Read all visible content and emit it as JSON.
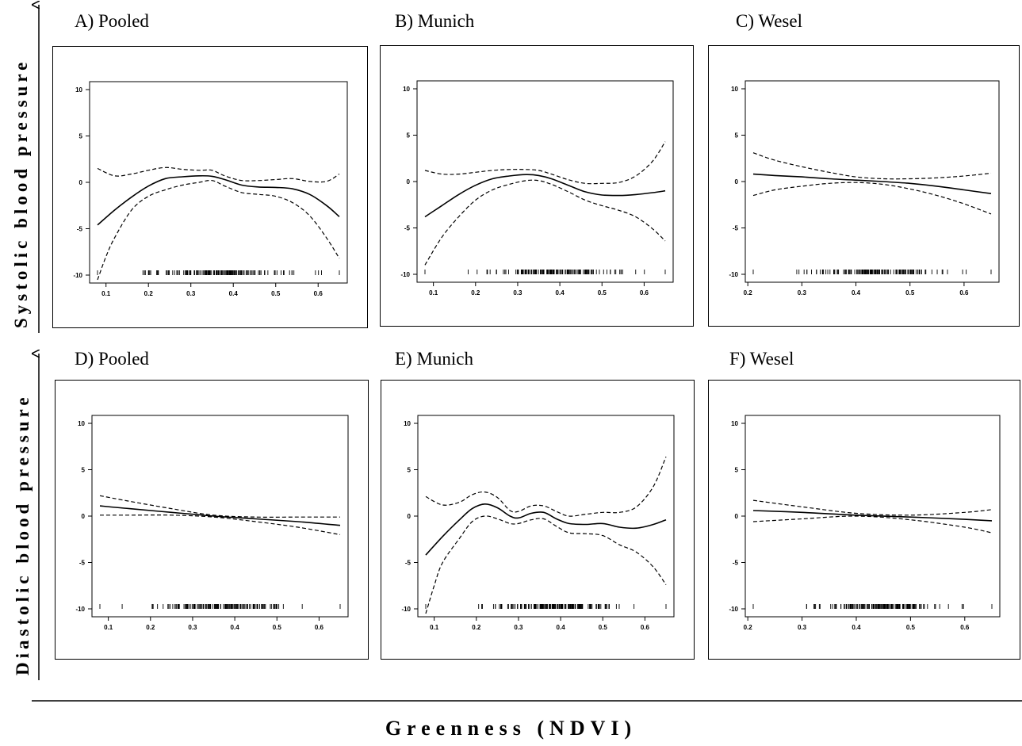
{
  "figure": {
    "row_labels": [
      "Systolic blood pressure",
      "Diastolic blood pressure"
    ],
    "x_title": "Greenness (NDVI)"
  },
  "chart_data": [
    {
      "type": "line",
      "panel": "A) Pooled",
      "xlim": [
        0.08,
        0.65
      ],
      "ylim": [
        -10,
        10
      ],
      "xticks": [
        0.1,
        0.2,
        0.3,
        0.4,
        0.5,
        0.6
      ],
      "yticks": [
        10,
        5,
        0,
        -5,
        -10
      ],
      "rug": "dense",
      "rug_range": [
        0.08,
        0.65
      ],
      "series": [
        {
          "style": "solid",
          "x": [
            0.08,
            0.12,
            0.16,
            0.2,
            0.24,
            0.28,
            0.32,
            0.35,
            0.38,
            0.42,
            0.46,
            0.5,
            0.54,
            0.58,
            0.62,
            0.65
          ],
          "y": [
            -4.6,
            -3,
            -1.6,
            -0.4,
            0.4,
            0.6,
            0.7,
            0.65,
            0.3,
            -0.3,
            -0.5,
            -0.55,
            -0.7,
            -1.3,
            -2.5,
            -3.7
          ]
        },
        {
          "style": "dashed",
          "x": [
            0.08,
            0.12,
            0.16,
            0.2,
            0.24,
            0.28,
            0.32,
            0.35,
            0.38,
            0.42,
            0.46,
            0.5,
            0.54,
            0.58,
            0.62,
            0.65
          ],
          "y": [
            1.5,
            0.7,
            0.9,
            1.3,
            1.6,
            1.4,
            1.3,
            1.3,
            0.7,
            0.2,
            0.2,
            0.3,
            0.4,
            0.1,
            0.1,
            0.9
          ]
        },
        {
          "style": "dashed",
          "x": [
            0.08,
            0.1,
            0.12,
            0.16,
            0.2,
            0.24,
            0.28,
            0.32,
            0.35,
            0.38,
            0.42,
            0.46,
            0.5,
            0.54,
            0.58,
            0.62,
            0.65
          ],
          "y": [
            -10.5,
            -8,
            -6,
            -3,
            -1.5,
            -0.8,
            -0.3,
            0,
            0.2,
            -0.4,
            -1.1,
            -1.3,
            -1.5,
            -2.2,
            -3.6,
            -6,
            -8.2
          ]
        }
      ]
    },
    {
      "type": "line",
      "panel": "B) Munich",
      "xlim": [
        0.08,
        0.65
      ],
      "ylim": [
        -10,
        10
      ],
      "xticks": [
        0.1,
        0.2,
        0.3,
        0.4,
        0.5,
        0.6
      ],
      "yticks": [
        10,
        5,
        0,
        -5,
        -10
      ],
      "rug": "dense",
      "rug_range": [
        0.13,
        0.65
      ],
      "series": [
        {
          "style": "solid",
          "x": [
            0.08,
            0.12,
            0.16,
            0.2,
            0.24,
            0.28,
            0.32,
            0.35,
            0.38,
            0.42,
            0.46,
            0.5,
            0.54,
            0.58,
            0.62,
            0.65
          ],
          "y": [
            -3.8,
            -2.6,
            -1.4,
            -0.4,
            0.3,
            0.6,
            0.75,
            0.65,
            0.3,
            -0.4,
            -1.1,
            -1.45,
            -1.5,
            -1.4,
            -1.2,
            -1.0
          ]
        },
        {
          "style": "dashed",
          "x": [
            0.08,
            0.12,
            0.16,
            0.2,
            0.24,
            0.28,
            0.32,
            0.35,
            0.38,
            0.42,
            0.46,
            0.5,
            0.54,
            0.58,
            0.62,
            0.65
          ],
          "y": [
            1.2,
            0.8,
            0.8,
            1.0,
            1.2,
            1.3,
            1.3,
            1.2,
            0.8,
            0.2,
            -0.2,
            -0.2,
            -0.1,
            0.6,
            2.2,
            4.3
          ]
        },
        {
          "style": "dashed",
          "x": [
            0.08,
            0.12,
            0.16,
            0.2,
            0.24,
            0.28,
            0.32,
            0.35,
            0.38,
            0.42,
            0.46,
            0.5,
            0.54,
            0.58,
            0.62,
            0.65
          ],
          "y": [
            -9,
            -6,
            -3.8,
            -2,
            -0.9,
            -0.3,
            0.1,
            0.1,
            -0.3,
            -1.1,
            -2,
            -2.6,
            -3.1,
            -3.8,
            -5.1,
            -6.4
          ]
        }
      ]
    },
    {
      "type": "line",
      "panel": "C) Wesel",
      "xlim": [
        0.21,
        0.65
      ],
      "ylim": [
        -10,
        10
      ],
      "xticks": [
        0.2,
        0.3,
        0.4,
        0.5,
        0.6
      ],
      "yticks": [
        10,
        5,
        0,
        -5,
        -10
      ],
      "rug": "dense",
      "rug_range": [
        0.22,
        0.65
      ],
      "series": [
        {
          "style": "solid",
          "x": [
            0.21,
            0.25,
            0.3,
            0.35,
            0.4,
            0.45,
            0.5,
            0.55,
            0.6,
            0.65
          ],
          "y": [
            0.8,
            0.65,
            0.5,
            0.3,
            0.15,
            0,
            -0.2,
            -0.5,
            -0.9,
            -1.3
          ]
        },
        {
          "style": "dashed",
          "x": [
            0.21,
            0.25,
            0.3,
            0.35,
            0.4,
            0.45,
            0.5,
            0.55,
            0.6,
            0.65
          ],
          "y": [
            3.1,
            2.3,
            1.6,
            1.0,
            0.5,
            0.3,
            0.3,
            0.4,
            0.6,
            0.9
          ]
        },
        {
          "style": "dashed",
          "x": [
            0.21,
            0.25,
            0.3,
            0.35,
            0.4,
            0.45,
            0.5,
            0.55,
            0.6,
            0.65
          ],
          "y": [
            -1.5,
            -0.9,
            -0.5,
            -0.2,
            -0.1,
            -0.3,
            -0.8,
            -1.5,
            -2.4,
            -3.5
          ]
        }
      ]
    },
    {
      "type": "line",
      "panel": "D) Pooled",
      "xlim": [
        0.08,
        0.65
      ],
      "ylim": [
        -10,
        10
      ],
      "xticks": [
        0.1,
        0.2,
        0.3,
        0.4,
        0.5,
        0.6
      ],
      "yticks": [
        10,
        5,
        0,
        -5,
        -10
      ],
      "rug": "dense",
      "rug_range": [
        0.08,
        0.65
      ],
      "series": [
        {
          "style": "solid",
          "x": [
            0.08,
            0.15,
            0.25,
            0.35,
            0.45,
            0.55,
            0.65
          ],
          "y": [
            1.1,
            0.8,
            0.4,
            0,
            -0.3,
            -0.6,
            -1.0
          ]
        },
        {
          "style": "dashed",
          "x": [
            0.08,
            0.15,
            0.25,
            0.35,
            0.45,
            0.55,
            0.65
          ],
          "y": [
            2.2,
            1.6,
            0.8,
            0.1,
            -0.1,
            -0.1,
            -0.1
          ]
        },
        {
          "style": "dashed",
          "x": [
            0.08,
            0.15,
            0.25,
            0.35,
            0.45,
            0.55,
            0.65
          ],
          "y": [
            0.1,
            0.1,
            0.1,
            -0.1,
            -0.6,
            -1.2,
            -2.0
          ]
        }
      ]
    },
    {
      "type": "line",
      "panel": "E) Munich",
      "xlim": [
        0.08,
        0.65
      ],
      "ylim": [
        -10,
        10
      ],
      "xticks": [
        0.1,
        0.2,
        0.3,
        0.4,
        0.5,
        0.6
      ],
      "yticks": [
        10,
        5,
        0,
        -5,
        -10
      ],
      "rug": "dense",
      "rug_range": [
        0.13,
        0.65
      ],
      "series": [
        {
          "style": "solid",
          "x": [
            0.08,
            0.12,
            0.16,
            0.19,
            0.22,
            0.25,
            0.28,
            0.3,
            0.33,
            0.36,
            0.39,
            0.42,
            0.46,
            0.5,
            0.54,
            0.58,
            0.62,
            0.65
          ],
          "y": [
            -4.2,
            -2.2,
            -0.4,
            0.8,
            1.3,
            0.9,
            0,
            -0.2,
            0.3,
            0.4,
            -0.3,
            -0.8,
            -0.9,
            -0.8,
            -1.2,
            -1.3,
            -0.9,
            -0.4
          ]
        },
        {
          "style": "dashed",
          "x": [
            0.08,
            0.12,
            0.16,
            0.19,
            0.22,
            0.25,
            0.28,
            0.3,
            0.33,
            0.36,
            0.39,
            0.42,
            0.46,
            0.5,
            0.54,
            0.58,
            0.62,
            0.65
          ],
          "y": [
            2.1,
            1.2,
            1.5,
            2.3,
            2.6,
            2.0,
            0.6,
            0.5,
            1.1,
            1.1,
            0.5,
            0,
            0.2,
            0.4,
            0.4,
            1.0,
            3.2,
            6.4
          ]
        },
        {
          "style": "dashed",
          "x": [
            0.08,
            0.1,
            0.12,
            0.16,
            0.19,
            0.22,
            0.25,
            0.28,
            0.3,
            0.33,
            0.36,
            0.39,
            0.42,
            0.46,
            0.5,
            0.54,
            0.58,
            0.62,
            0.65
          ],
          "y": [
            -10.5,
            -7.5,
            -5,
            -2.4,
            -0.6,
            0,
            -0.3,
            -0.8,
            -0.8,
            -0.4,
            -0.3,
            -1.1,
            -1.8,
            -1.9,
            -2.1,
            -3.1,
            -3.9,
            -5.5,
            -7.4
          ]
        }
      ]
    },
    {
      "type": "line",
      "panel": "F) Wesel",
      "xlim": [
        0.21,
        0.65
      ],
      "ylim": [
        -10,
        10
      ],
      "xticks": [
        0.2,
        0.3,
        0.4,
        0.5,
        0.6
      ],
      "yticks": [
        10,
        5,
        0,
        -5,
        -10
      ],
      "rug": "dense",
      "rug_range": [
        0.22,
        0.65
      ],
      "series": [
        {
          "style": "solid",
          "x": [
            0.21,
            0.3,
            0.4,
            0.5,
            0.6,
            0.65
          ],
          "y": [
            0.6,
            0.4,
            0.1,
            -0.1,
            -0.35,
            -0.5
          ]
        },
        {
          "style": "dashed",
          "x": [
            0.21,
            0.3,
            0.4,
            0.5,
            0.6,
            0.65
          ],
          "y": [
            1.7,
            1.0,
            0.3,
            0.1,
            0.4,
            0.7
          ]
        },
        {
          "style": "dashed",
          "x": [
            0.21,
            0.3,
            0.4,
            0.5,
            0.6,
            0.65
          ],
          "y": [
            -0.6,
            -0.3,
            0,
            -0.4,
            -1.2,
            -1.8
          ]
        }
      ]
    }
  ]
}
